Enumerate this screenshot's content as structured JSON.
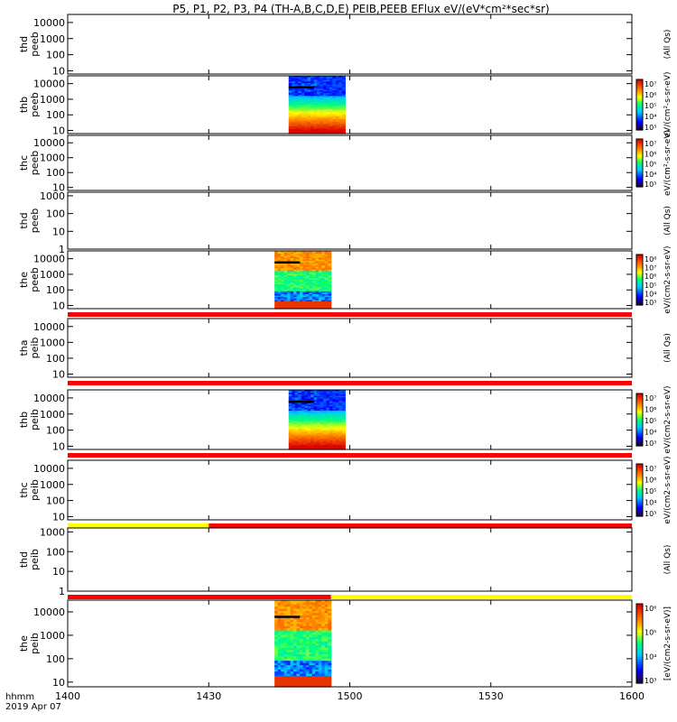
{
  "title": "P5, P1, P2, P3, P4 (TH-A,B,C,D,E) PEIB,PEEB EFlux eV/(eV*cm²*sec*sr)",
  "time_axis": {
    "label_line1": "hhmm",
    "label_line2": "2019 Apr 07",
    "ticks": [
      "1400",
      "1430",
      "1500",
      "1530",
      "1600"
    ]
  },
  "chart_data": {
    "type": "heatmap",
    "x_range_hhmm": [
      "1400",
      "1600"
    ],
    "panels": [
      {
        "label1": "thd",
        "label2": "peeb",
        "yticks": [
          "10000",
          "1000",
          "100",
          "10"
        ],
        "ylog_range": [
          0.8,
          4.5
        ],
        "spec": null,
        "colorbar": null,
        "unit_side": "(All Qs)",
        "flag_bar": null
      },
      {
        "label1": "thb",
        "label2": "peeb",
        "yticks": [
          "10000",
          "1000",
          "100",
          "10"
        ],
        "ylog_range": [
          0.8,
          4.5
        ],
        "spec": {
          "t_start": "1447",
          "t_end": "1459",
          "kind": "b"
        },
        "colorbar": [
          "10⁷",
          "10⁶",
          "10⁵",
          "10⁴",
          "10³"
        ],
        "unit_side": "eV/(cm²-s-sr-eV)",
        "flag_bar": null
      },
      {
        "label1": "thc",
        "label2": "peeb",
        "yticks": [
          "10000",
          "1000",
          "100",
          "10"
        ],
        "ylog_range": [
          0.8,
          4.5
        ],
        "spec": null,
        "colorbar": [
          "10⁷",
          "10⁶",
          "10⁵",
          "10⁴",
          "10³"
        ],
        "unit_side": "eV/(cm²-s-sr-eV)",
        "flag_bar": null
      },
      {
        "label1": "thd",
        "label2": "peeb",
        "yticks": [
          "1000",
          "100",
          "10",
          "1"
        ],
        "ylog_range": [
          0,
          3.2
        ],
        "spec": null,
        "colorbar": null,
        "unit_side": "(All Qs)",
        "flag_bar": null
      },
      {
        "label1": "the",
        "label2": "peeb",
        "yticks": [
          "10000",
          "1000",
          "100",
          "10"
        ],
        "ylog_range": [
          0.8,
          4.5
        ],
        "spec": {
          "t_start": "1444",
          "t_end": "1456",
          "kind": "e"
        },
        "colorbar": [
          "10⁸",
          "10⁷",
          "10⁶",
          "10⁵",
          "10⁴",
          "10³"
        ],
        "unit_side": "eV/(cm2-s-sr-eV)",
        "flag_bar": {
          "segments": [
            {
              "from": "1400",
              "to": "1600",
              "color": "#ff0000"
            }
          ]
        }
      },
      {
        "label1": "tha",
        "label2": "peib",
        "yticks": [
          "10000",
          "1000",
          "100",
          "10"
        ],
        "ylog_range": [
          0.8,
          4.5
        ],
        "spec": null,
        "colorbar": null,
        "unit_side": "(All Qs)",
        "flag_bar": {
          "segments": [
            {
              "from": "1400",
              "to": "1600",
              "color": "#ff0000"
            }
          ]
        }
      },
      {
        "label1": "thb",
        "label2": "peib",
        "yticks": [
          "10000",
          "1000",
          "100",
          "10"
        ],
        "ylog_range": [
          0.8,
          4.5
        ],
        "spec": {
          "t_start": "1447",
          "t_end": "1459",
          "kind": "b"
        },
        "colorbar": [
          "10⁷",
          "10⁶",
          "10⁵",
          "10⁴",
          "10³"
        ],
        "unit_side": "eV/(cm2-s-sr-eV)",
        "flag_bar": {
          "segments": [
            {
              "from": "1400",
              "to": "1600",
              "color": "#ff0000"
            }
          ]
        }
      },
      {
        "label1": "thc",
        "label2": "peib",
        "yticks": [
          "10000",
          "1000",
          "100",
          "10"
        ],
        "ylog_range": [
          0.8,
          4.5
        ],
        "spec": null,
        "colorbar": [
          "10⁷",
          "10⁶",
          "10⁵",
          "10⁴",
          "10³"
        ],
        "unit_side": "eV/(cm2-s-sr-eV)",
        "flag_bar": {
          "segments": [
            {
              "from": "1400",
              "to": "1430",
              "color": "#ffff00"
            },
            {
              "from": "1430",
              "to": "1600",
              "color": "#ff0000"
            }
          ]
        }
      },
      {
        "label1": "thd",
        "label2": "peib",
        "yticks": [
          "1000",
          "100",
          "10",
          "1"
        ],
        "ylog_range": [
          0,
          3.2
        ],
        "spec": null,
        "colorbar": null,
        "unit_side": "(All Qs)",
        "flag_bar": {
          "segments": [
            {
              "from": "1400",
              "to": "1456",
              "color": "#ff0000"
            },
            {
              "from": "1456",
              "to": "1600",
              "color": "#ffff00"
            }
          ]
        }
      },
      {
        "label1": "the",
        "label2": "peib",
        "yticks": [
          "10000",
          "1000",
          "100",
          "10"
        ],
        "ylog_range": [
          0.8,
          4.5
        ],
        "spec": {
          "t_start": "1444",
          "t_end": "1456",
          "kind": "e"
        },
        "colorbar": [
          "10⁶",
          "10⁵",
          "10⁴",
          "10³"
        ],
        "unit_side": "[eV/(cm2-s-sr-eV)]",
        "flag_bar": null
      }
    ]
  }
}
